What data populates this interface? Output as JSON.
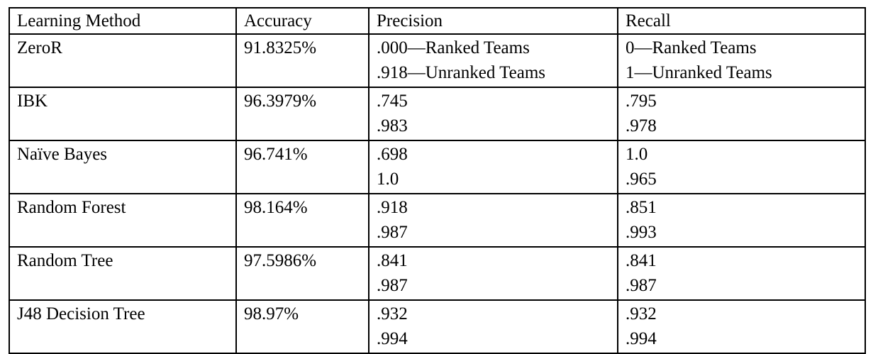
{
  "table": {
    "headers": [
      "Learning Method",
      "Accuracy",
      "Precision",
      "Recall"
    ],
    "rows": [
      {
        "method": "ZeroR",
        "accuracy": "91.8325%",
        "precision": [
          ".000—Ranked Teams",
          ".918—Unranked Teams"
        ],
        "recall": [
          "0—Ranked Teams",
          "1—Unranked Teams"
        ]
      },
      {
        "method": "IBK",
        "accuracy": "96.3979%",
        "precision": [
          ".745",
          ".983"
        ],
        "recall": [
          ".795",
          ".978"
        ]
      },
      {
        "method": "Naïve Bayes",
        "accuracy": "96.741%",
        "precision": [
          ".698",
          "1.0"
        ],
        "recall": [
          "1.0",
          ".965"
        ]
      },
      {
        "method": "Random Forest",
        "accuracy": "98.164%",
        "precision": [
          ".918",
          ".987"
        ],
        "recall": [
          ".851",
          ".993"
        ]
      },
      {
        "method": "Random Tree",
        "accuracy": "97.5986%",
        "precision": [
          ".841",
          ".987"
        ],
        "recall": [
          ".841",
          ".987"
        ]
      },
      {
        "method": "J48 Decision Tree",
        "accuracy": "98.97%",
        "precision": [
          ".932",
          ".994"
        ],
        "recall": [
          ".932",
          ".994"
        ]
      }
    ]
  }
}
